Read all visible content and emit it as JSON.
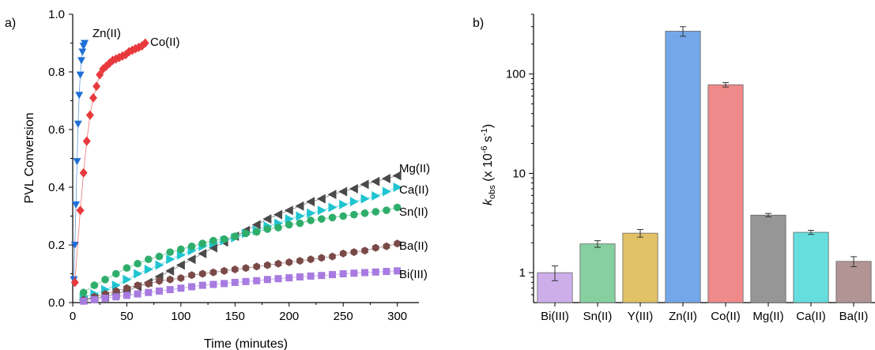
{
  "chart_data": [
    {
      "panel_label": "a)",
      "type": "scatter",
      "xlabel": "Time (minutes)",
      "ylabel": "PVL Conversion",
      "xlim": [
        0,
        320
      ],
      "ylim": [
        0,
        1.0
      ],
      "xticks": [
        "0",
        "50",
        "100",
        "150",
        "200",
        "250",
        "300"
      ],
      "yticks": [
        "0.0",
        "0.2",
        "0.4",
        "0.6",
        "0.8",
        "1.0"
      ],
      "series": [
        {
          "name": "Zn(II)",
          "color": "#1f6fd6",
          "marker": "triangle-down",
          "x": [
            1,
            2,
            3,
            4,
            5,
            6,
            7,
            8,
            9,
            10,
            11
          ],
          "y": [
            0.08,
            0.2,
            0.34,
            0.49,
            0.62,
            0.72,
            0.79,
            0.84,
            0.87,
            0.89,
            0.9
          ]
        },
        {
          "name": "Co(II)",
          "color": "#e8393c",
          "marker": "diamond",
          "x": [
            2,
            7,
            10,
            13,
            16,
            19,
            22,
            25,
            28,
            31,
            34,
            37,
            40,
            43,
            46,
            49,
            52,
            55,
            58,
            61,
            64,
            67
          ],
          "y": [
            0.07,
            0.32,
            0.45,
            0.56,
            0.65,
            0.71,
            0.75,
            0.79,
            0.81,
            0.82,
            0.83,
            0.84,
            0.845,
            0.85,
            0.855,
            0.86,
            0.87,
            0.875,
            0.88,
            0.885,
            0.89,
            0.9
          ]
        },
        {
          "name": "Mg(II)",
          "color": "#4a4a4a",
          "marker": "triangle-left",
          "x": [
            10,
            20,
            30,
            40,
            50,
            60,
            70,
            80,
            90,
            100,
            110,
            120,
            130,
            140,
            150,
            160,
            170,
            180,
            190,
            200,
            210,
            220,
            230,
            240,
            250,
            260,
            270,
            280,
            290,
            300
          ],
          "y": [
            0.01,
            0.015,
            0.02,
            0.03,
            0.04,
            0.055,
            0.07,
            0.09,
            0.11,
            0.13,
            0.15,
            0.17,
            0.19,
            0.21,
            0.23,
            0.25,
            0.27,
            0.29,
            0.305,
            0.32,
            0.335,
            0.35,
            0.36,
            0.375,
            0.385,
            0.395,
            0.41,
            0.42,
            0.43,
            0.44
          ]
        },
        {
          "name": "Ca(II)",
          "color": "#1fc4d1",
          "marker": "triangle-right",
          "x": [
            10,
            20,
            30,
            40,
            50,
            60,
            70,
            80,
            90,
            100,
            110,
            120,
            130,
            140,
            150,
            160,
            170,
            180,
            190,
            200,
            210,
            220,
            230,
            240,
            250,
            260,
            270,
            280,
            290,
            300
          ],
          "y": [
            0.02,
            0.03,
            0.045,
            0.06,
            0.08,
            0.1,
            0.115,
            0.13,
            0.15,
            0.165,
            0.18,
            0.195,
            0.205,
            0.215,
            0.225,
            0.24,
            0.25,
            0.265,
            0.275,
            0.29,
            0.3,
            0.31,
            0.32,
            0.33,
            0.34,
            0.35,
            0.36,
            0.37,
            0.385,
            0.4
          ]
        },
        {
          "name": "Sn(II)",
          "color": "#2fae6b",
          "marker": "circle",
          "x": [
            10,
            20,
            30,
            40,
            50,
            60,
            70,
            80,
            90,
            100,
            110,
            120,
            130,
            140,
            150,
            160,
            170,
            180,
            190,
            200,
            210,
            220,
            230,
            240,
            250,
            260,
            270,
            280,
            290,
            300
          ],
          "y": [
            0.035,
            0.06,
            0.08,
            0.1,
            0.12,
            0.135,
            0.15,
            0.16,
            0.175,
            0.185,
            0.195,
            0.205,
            0.215,
            0.22,
            0.23,
            0.24,
            0.245,
            0.255,
            0.26,
            0.27,
            0.275,
            0.285,
            0.29,
            0.295,
            0.3,
            0.305,
            0.31,
            0.315,
            0.32,
            0.33
          ]
        },
        {
          "name": "Ba(II)",
          "color": "#7a4a48",
          "marker": "hexagon",
          "x": [
            10,
            20,
            30,
            40,
            50,
            60,
            70,
            80,
            90,
            100,
            110,
            120,
            130,
            140,
            150,
            160,
            170,
            180,
            190,
            200,
            210,
            220,
            230,
            240,
            250,
            260,
            270,
            280,
            290,
            300
          ],
          "y": [
            0.01,
            0.02,
            0.03,
            0.04,
            0.05,
            0.06,
            0.065,
            0.075,
            0.08,
            0.085,
            0.095,
            0.1,
            0.105,
            0.11,
            0.115,
            0.12,
            0.125,
            0.13,
            0.135,
            0.14,
            0.145,
            0.15,
            0.155,
            0.16,
            0.17,
            0.175,
            0.18,
            0.19,
            0.195,
            0.205
          ]
        },
        {
          "name": "Bi(III)",
          "color": "#a77be0",
          "marker": "square",
          "x": [
            10,
            20,
            30,
            40,
            50,
            60,
            70,
            80,
            90,
            100,
            110,
            120,
            130,
            140,
            150,
            160,
            170,
            180,
            190,
            200,
            210,
            220,
            230,
            240,
            250,
            260,
            270,
            280,
            290,
            300
          ],
          "y": [
            0.005,
            0.01,
            0.015,
            0.02,
            0.025,
            0.03,
            0.035,
            0.04,
            0.045,
            0.05,
            0.055,
            0.06,
            0.063,
            0.066,
            0.07,
            0.073,
            0.076,
            0.08,
            0.083,
            0.086,
            0.089,
            0.092,
            0.094,
            0.097,
            0.1,
            0.102,
            0.104,
            0.106,
            0.108,
            0.11
          ]
        }
      ]
    },
    {
      "panel_label": "b)",
      "type": "bar",
      "ylabel_main": "k",
      "ylabel_sub": "obs",
      "ylabel_unit_a": " (x 10",
      "ylabel_exp1": "-6",
      "ylabel_unit_b": " s",
      "ylabel_exp2": "-1",
      "ylabel_unit_c": ")",
      "yscale": "log",
      "ylim": [
        0.5,
        400
      ],
      "yticks": [
        {
          "value": 1,
          "label": "1"
        },
        {
          "value": 10,
          "label": "10"
        },
        {
          "value": 100,
          "label": "100"
        }
      ],
      "categories": [
        "Bi(III)",
        "Sn(II)",
        "Y(III)",
        "Zn(II)",
        "Co(II)",
        "Mg(II)",
        "Ca(II)",
        "Ba(II)"
      ],
      "values": [
        1.0,
        1.95,
        2.5,
        270,
        78,
        3.8,
        2.55,
        1.3
      ],
      "errors": [
        0.17,
        0.15,
        0.22,
        30,
        4,
        0.15,
        0.12,
        0.15
      ],
      "colors": [
        "#cdaeea",
        "#86d0a0",
        "#e1c266",
        "#74a7ea",
        "#f08a8a",
        "#969696",
        "#66dede",
        "#b39494"
      ]
    }
  ]
}
